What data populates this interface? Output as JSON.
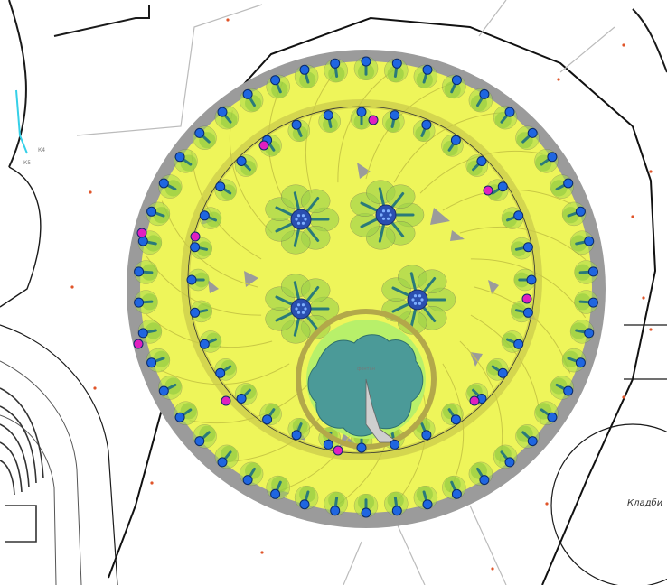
{
  "map": {
    "district_label": "Кладби",
    "left_labels": [
      "К4",
      "К5"
    ],
    "fountain_label": "фонтан",
    "colors": {
      "background": "#ffffff",
      "canopy_yellow": "#eef55a",
      "gap_gray": "#9b9b9b",
      "tree_green": "#9fd24a",
      "fountain_water": "#4b9a98",
      "marker_blue": "#1f66e0",
      "marker_magenta": "#e020c0",
      "accent_red": "#e0552a",
      "cyan_line": "#35d0e8",
      "line": "#1a1a1a"
    },
    "legend_icons": [
      "tree-canopy-icon",
      "lamp-marker-icon",
      "special-marker-icon",
      "flower-bed-icon"
    ]
  }
}
